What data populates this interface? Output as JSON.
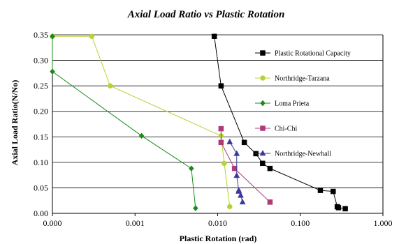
{
  "chart_data": {
    "type": "line",
    "title": "Axial Load Ratio vs Plastic Rotation",
    "xlabel": "Plastic Rotation (rad)",
    "ylabel": "Axial Load Ratio(N/No)",
    "xscale": "log",
    "xlim": [
      0.0001,
      1.0
    ],
    "ylim": [
      0,
      0.35
    ],
    "xticks": [
      0.0001,
      0.001,
      0.01,
      0.1,
      1.0
    ],
    "xtick_labels": [
      "0.000",
      "0.001",
      "0.010",
      "0.100",
      "1.000"
    ],
    "yticks": [
      0,
      0.05,
      0.1,
      0.15,
      0.2,
      0.25,
      0.3,
      0.35
    ],
    "ytick_labels": [
      "0.00",
      "0.05",
      "0.10",
      "0.15",
      "0.20",
      "0.25",
      "0.30",
      "0.35"
    ],
    "grid": "horizontal",
    "legend_position": "right",
    "series": [
      {
        "name": "Plastic Rotational Capacity",
        "color": "#000000",
        "marker": "square",
        "x": [
          0.0091,
          0.011,
          0.021,
          0.029,
          0.035,
          0.043,
          0.175,
          0.25,
          0.28,
          0.29,
          0.35
        ],
        "y": [
          0.347,
          0.25,
          0.139,
          0.117,
          0.098,
          0.088,
          0.045,
          0.043,
          0.013,
          0.011,
          0.009
        ]
      },
      {
        "name": "Northridge-Tarzana",
        "color": "#b5d334",
        "marker": "circle",
        "x": [
          0.0001,
          0.0003,
          0.0005,
          0.011,
          0.012,
          0.014
        ],
        "y": [
          0.347,
          0.347,
          0.25,
          0.152,
          0.098,
          0.013
        ]
      },
      {
        "name": "Loma Prieta",
        "color": "#1a8a1a",
        "marker": "diamond",
        "x": [
          0.0001,
          0.0001,
          0.0012,
          0.0048,
          0.0054
        ],
        "y": [
          0.347,
          0.278,
          0.152,
          0.088,
          0.01
        ]
      },
      {
        "name": "Chi-Chi",
        "color": "#b03a78",
        "marker": "square",
        "x": [
          0.011,
          0.011,
          0.016,
          0.043
        ],
        "y": [
          0.166,
          0.139,
          0.088,
          0.022
        ]
      },
      {
        "name": "Northridge-Newhall",
        "color": "#3a3a9a",
        "marker": "triangle",
        "x": [
          0.014,
          0.017,
          0.017,
          0.018,
          0.018,
          0.019,
          0.02
        ],
        "y": [
          0.14,
          0.117,
          0.074,
          0.045,
          0.043,
          0.035,
          0.022
        ]
      }
    ]
  }
}
